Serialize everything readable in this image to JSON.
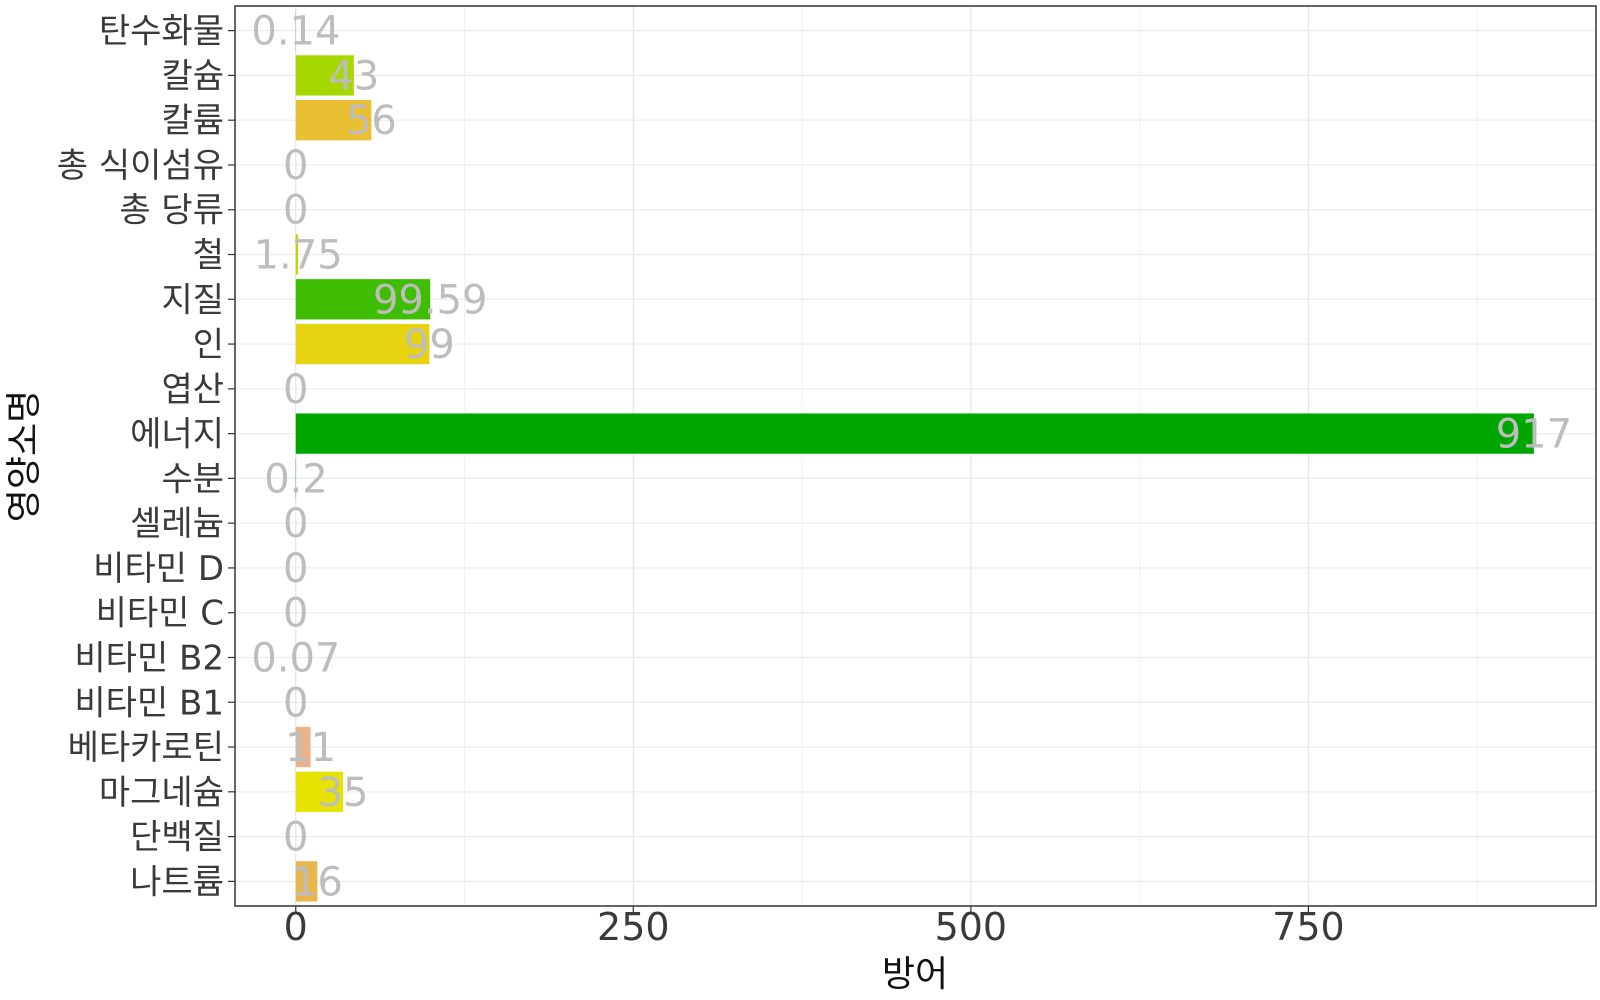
{
  "chart_data": {
    "type": "bar",
    "orientation": "horizontal",
    "xlabel": "방어",
    "ylabel": "영양소명",
    "xlim": [
      -45,
      963
    ],
    "x_ticks": [
      {
        "value": 0,
        "label": "0"
      },
      {
        "value": 250,
        "label": "250"
      },
      {
        "value": 500,
        "label": "500"
      },
      {
        "value": 750,
        "label": "750"
      }
    ],
    "grid": true,
    "categories": [
      "탄수화물",
      "칼슘",
      "칼륨",
      "총 식이섬유",
      "총 당류",
      "철",
      "지질",
      "인",
      "엽산",
      "에너지",
      "수분",
      "셀레늄",
      "비타민 D",
      "비타민 C",
      "비타민 B2",
      "비타민 B1",
      "베타카로틴",
      "마그네슘",
      "단백질",
      "나트륨"
    ],
    "values": [
      0.14,
      43,
      56,
      0,
      0,
      1.75,
      99.59,
      99,
      0,
      917,
      0.2,
      0,
      0,
      0,
      0.07,
      0,
      11,
      35,
      0,
      16
    ],
    "value_labels": [
      "0.14",
      "43",
      "56",
      "0",
      "0",
      "1.75",
      "99.59",
      "99",
      "0",
      "917",
      "0.2",
      "0",
      "0",
      "0",
      "0.07",
      "0",
      "11",
      "35",
      "0",
      "16"
    ],
    "colors": [
      "#00a600",
      "#a6d800",
      "#e8c032",
      "#e8c032",
      "#e8c032",
      "#c8d400",
      "#3fbd00",
      "#e6d20e",
      "#e6d20e",
      "#00a600",
      "#00a600",
      "#e6d20e",
      "#e6d20e",
      "#e6d20e",
      "#eebeac",
      "#eebeac",
      "#eab38a",
      "#e6e300",
      "#e8c032",
      "#e8b54e"
    ]
  }
}
